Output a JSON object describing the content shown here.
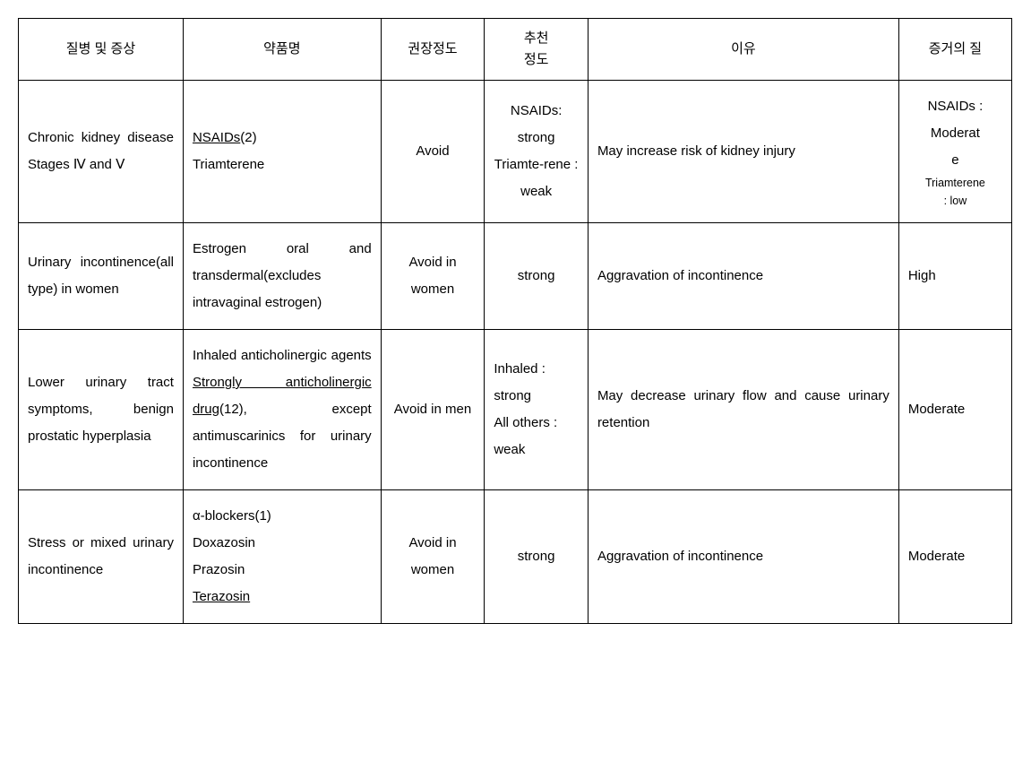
{
  "table": {
    "headers": {
      "disease": "질병 및 증상",
      "drug": "약품명",
      "recommend": "권장정도",
      "strength": "추천\n정도",
      "reason": "이유",
      "quality": "증거의 질"
    },
    "rows": [
      {
        "disease": "Chronic kidney disease Stages Ⅳ and Ⅴ",
        "drug_underlined": "NSAIDs",
        "drug_after": "(2)",
        "drug_line2": "Triamterene",
        "recommend": "Avoid",
        "strength": "NSAIDs: strong Triamte-rene : weak",
        "reason": "May increase risk of kidney injury",
        "quality_line1": "NSAIDs :",
        "quality_line2": "Moderat",
        "quality_line3": "e",
        "quality_small1": "Triamterene",
        "quality_small2": ": low"
      },
      {
        "disease": "Urinary incontinence(all type) in women",
        "drug_plain": "Estrogen oral and transdermal(excludes intravaginal estrogen)",
        "recommend": "Avoid in women",
        "strength": "strong",
        "reason": "Aggravation of incontinence",
        "quality": "High"
      },
      {
        "disease": "Lower urinary tract symptoms, benign prostatic hyperplasia",
        "drug_before": "Inhaled anticholinergic agents ",
        "drug_underlined": "Strongly anticholinergic drug",
        "drug_after": "(12), except antimuscarinics for urinary incontinence",
        "recommend": "Avoid in men",
        "strength": "Inhaled : strong\nAll others : weak",
        "reason": "May decrease urinary flow and cause urinary retention",
        "quality": "Moderate"
      },
      {
        "disease": "Stress or mixed urinary incontinence",
        "drug_line1": "α-blockers(1)",
        "drug_line2": " Doxazosin",
        "drug_line3": " Prazosin",
        "drug_line4_u": " Terazosin",
        "recommend": "Avoid in women",
        "strength": "strong",
        "reason": "Aggravation of incontinence",
        "quality": "Moderate"
      }
    ]
  }
}
